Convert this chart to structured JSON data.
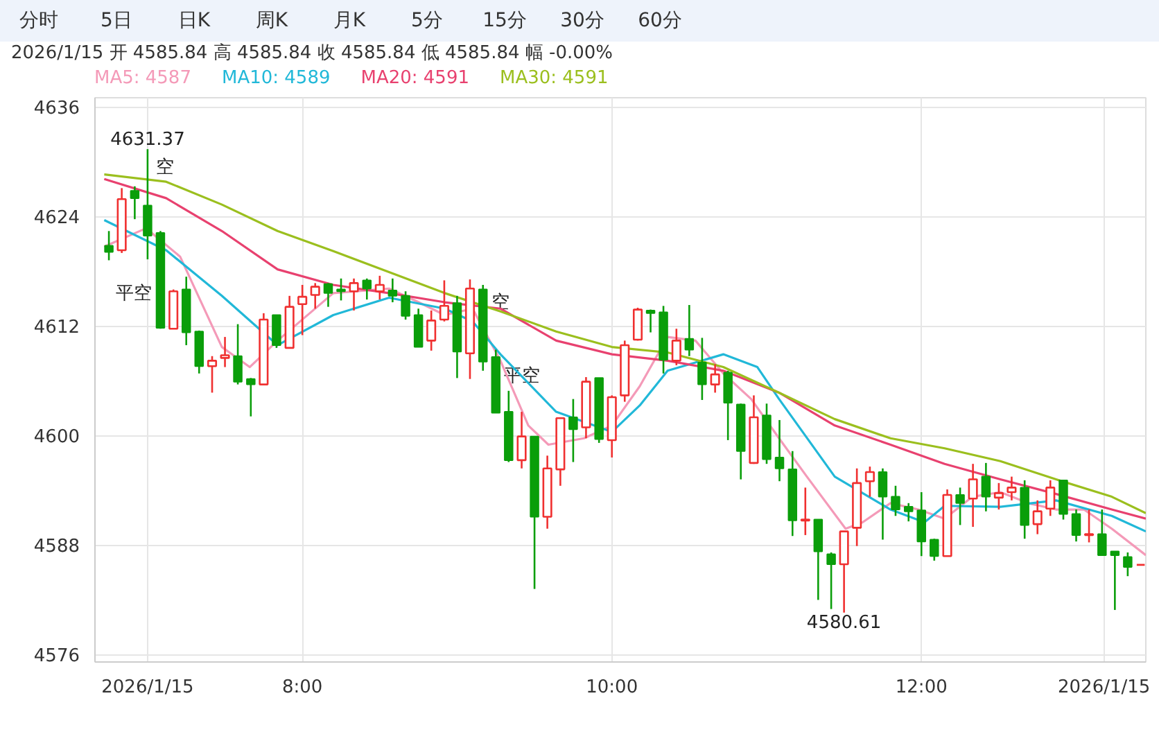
{
  "chart_data": {
    "type": "candlestick",
    "annotations": [
      "分时",
      "5日",
      "日K",
      "周K",
      "月K",
      "5分",
      "15分",
      "30分",
      "60分",
      "2026/1/15  开 4585.84  高 4585.84  收 4585.84  低 4585.84  幅 -0.00%",
      "4580.61",
      {
        "text": "4631.37",
        "x": 7.0,
        "y": 4631.37
      },
      {
        "text": "空",
        "x": 7.0,
        "y": 4629.3
      },
      {
        "text": "平空",
        "x": 7.083,
        "y": 4615.5
      },
      {
        "text": "空",
        "x": 9.167,
        "y": 4614.5
      },
      {
        "text": "平空",
        "x": 9.25,
        "y": 4606.5
      }
    ],
    "x": [
      6.75,
      6.833,
      6.917,
      7.0,
      7.083,
      7.167,
      7.25,
      7.333,
      7.417,
      7.5,
      7.583,
      7.667,
      7.75,
      7.833,
      7.917,
      8.0,
      8.083,
      8.167,
      8.25,
      8.333,
      8.417,
      8.5,
      8.583,
      8.667,
      8.75,
      8.833,
      8.917,
      9.0,
      9.083,
      9.167,
      9.25,
      9.333,
      9.417,
      9.5,
      9.583,
      9.667,
      9.75,
      9.833,
      9.917,
      10.0,
      10.083,
      10.167,
      10.25,
      10.333,
      10.417,
      10.5,
      10.583,
      10.667,
      10.75,
      10.833,
      10.917,
      11.0,
      11.083,
      11.167,
      11.25,
      11.333,
      11.417,
      11.5,
      11.583,
      11.667,
      11.75,
      11.833,
      11.917,
      12.0,
      12.083,
      12.167,
      12.25,
      12.333,
      12.417,
      12.5,
      12.583,
      12.667,
      12.75,
      12.833,
      12.917,
      13.0,
      13.083,
      13.167,
      13.25,
      13.333,
      13.417
    ],
    "ohlc": [
      [
        4620.8,
        4622.4,
        4619.2,
        4620.1
      ],
      [
        4620.3,
        4627.1,
        4620.0,
        4625.9
      ],
      [
        4626.8,
        4627.3,
        4623.7,
        4626.0
      ],
      [
        4625.2,
        4631.37,
        4619.3,
        4621.9
      ],
      [
        4622.2,
        4622.4,
        4611.7,
        4611.8
      ],
      [
        4611.7,
        4616.0,
        4611.7,
        4615.8
      ],
      [
        4616.0,
        4617.4,
        4609.9,
        4611.3
      ],
      [
        4611.4,
        4611.5,
        4606.8,
        4607.6
      ],
      [
        4607.6,
        4608.7,
        4604.7,
        4608.2
      ],
      [
        4608.5,
        4610.8,
        4607.5,
        4608.8
      ],
      [
        4608.7,
        4612.2,
        4605.6,
        4605.9
      ],
      [
        4606.2,
        4606.3,
        4602.1,
        4605.6
      ],
      [
        4605.6,
        4613.4,
        4605.6,
        4612.7
      ],
      [
        4613.2,
        4613.2,
        4609.6,
        4609.9
      ],
      [
        4609.6,
        4615.3,
        4609.6,
        4614.1
      ],
      [
        4614.4,
        4616.5,
        4611.0,
        4615.2
      ],
      [
        4615.4,
        4616.7,
        4613.9,
        4616.3
      ],
      [
        4616.6,
        4616.7,
        4614.1,
        4615.6
      ],
      [
        4616.0,
        4617.2,
        4614.8,
        4615.8
      ],
      [
        4615.8,
        4617.2,
        4613.7,
        4616.7
      ],
      [
        4617.0,
        4617.2,
        4614.9,
        4616.1
      ],
      [
        4615.8,
        4617.5,
        4614.9,
        4616.5
      ],
      [
        4615.9,
        4617.2,
        4614.6,
        4615.3
      ],
      [
        4615.3,
        4615.8,
        4612.7,
        4613.1
      ],
      [
        4613.2,
        4613.9,
        4609.7,
        4609.7
      ],
      [
        4610.4,
        4613.7,
        4609.3,
        4612.6
      ],
      [
        4612.7,
        4617.0,
        4612.5,
        4614.2
      ],
      [
        4614.5,
        4615.3,
        4606.3,
        4609.2
      ],
      [
        4609.0,
        4617.1,
        4606.2,
        4616.1
      ],
      [
        4616.0,
        4616.5,
        4607.1,
        4608.1
      ],
      [
        4608.6,
        4609.4,
        4602.5,
        4602.5
      ],
      [
        4602.6,
        4604.9,
        4597.1,
        4597.3
      ],
      [
        4597.3,
        4602.6,
        4596.4,
        4599.9
      ],
      [
        4599.9,
        4599.9,
        4583.2,
        4591.1
      ],
      [
        4591.1,
        4597.8,
        4589.8,
        4596.4
      ],
      [
        4596.3,
        4601.9,
        4594.5,
        4601.9
      ],
      [
        4602.0,
        4604.0,
        4597.1,
        4600.7
      ],
      [
        4600.9,
        4606.4,
        4599.7,
        4605.9
      ],
      [
        4606.3,
        4606.3,
        4599.2,
        4599.6
      ],
      [
        4599.5,
        4604.4,
        4597.6,
        4604.2
      ],
      [
        4604.4,
        4610.4,
        4603.7,
        4609.9
      ],
      [
        4610.5,
        4614.0,
        4610.4,
        4613.8
      ],
      [
        4613.7,
        4613.8,
        4611.3,
        4613.4
      ],
      [
        4613.5,
        4614.2,
        4606.8,
        4608.3
      ],
      [
        4608.2,
        4611.7,
        4607.7,
        4610.4
      ],
      [
        4610.6,
        4614.3,
        4608.7,
        4609.4
      ],
      [
        4608.0,
        4610.7,
        4603.9,
        4605.6
      ],
      [
        4605.6,
        4607.8,
        4604.7,
        4606.7
      ],
      [
        4606.9,
        4607.1,
        4599.5,
        4603.6
      ],
      [
        4603.4,
        4603.5,
        4595.2,
        4598.3
      ],
      [
        4597.0,
        4604.4,
        4596.9,
        4602.0
      ],
      [
        4602.2,
        4603.5,
        4596.9,
        4597.4
      ],
      [
        4597.6,
        4601.7,
        4595.0,
        4596.4
      ],
      [
        4596.3,
        4598.3,
        4589.0,
        4590.7
      ],
      [
        4590.7,
        4594.3,
        4589.1,
        4590.8
      ],
      [
        4590.8,
        4590.8,
        4582.0,
        4587.3
      ],
      [
        4587.0,
        4587.2,
        4581.0,
        4585.9
      ],
      [
        4585.9,
        4589.5,
        4580.61,
        4589.5
      ],
      [
        4589.9,
        4596.4,
        4587.9,
        4594.8
      ],
      [
        4595.0,
        4596.6,
        4593.3,
        4596.0
      ],
      [
        4596.0,
        4596.4,
        4588.6,
        4593.3
      ],
      [
        4593.3,
        4594.5,
        4591.2,
        4591.9
      ],
      [
        4592.2,
        4592.6,
        4590.6,
        4591.7
      ],
      [
        4591.8,
        4593.8,
        4586.8,
        4588.4
      ],
      [
        4588.6,
        4588.7,
        4586.3,
        4586.8
      ],
      [
        4586.8,
        4594.1,
        4586.8,
        4593.5
      ],
      [
        4593.5,
        4594.3,
        4590.2,
        4592.6
      ],
      [
        4593.1,
        4596.9,
        4590.0,
        4595.2
      ],
      [
        4595.5,
        4597.0,
        4591.7,
        4593.3
      ],
      [
        4593.2,
        4594.8,
        4591.9,
        4593.7
      ],
      [
        4593.8,
        4595.5,
        4592.9,
        4594.3
      ],
      [
        4594.3,
        4595.1,
        4588.7,
        4590.2
      ],
      [
        4590.3,
        4592.9,
        4589.2,
        4591.7
      ],
      [
        4592.0,
        4595.1,
        4591.2,
        4594.3
      ],
      [
        4595.1,
        4595.1,
        4590.8,
        4591.4
      ],
      [
        4591.4,
        4591.9,
        4588.4,
        4589.1
      ],
      [
        4589.1,
        4591.9,
        4588.3,
        4589.2
      ],
      [
        4589.2,
        4591.9,
        4586.9,
        4586.9
      ],
      [
        4587.3,
        4587.3,
        4580.9,
        4586.9
      ],
      [
        4586.7,
        4587.2,
        4584.6,
        4585.6
      ],
      [
        4585.84,
        4585.84,
        4585.84,
        4585.84
      ]
    ],
    "series": [
      {
        "name": "MA5: 4587",
        "type": "line",
        "color": "#f49ab8",
        "x": [
          6.72,
          6.99,
          7.21,
          7.48,
          7.66,
          7.84,
          8.2,
          8.56,
          8.74,
          8.92,
          9.1,
          9.28,
          9.46,
          9.59,
          9.82,
          10.0,
          10.18,
          10.36,
          10.54,
          10.72,
          10.9,
          11.08,
          11.26,
          11.51,
          11.62,
          11.8,
          11.98,
          12.15,
          12.33,
          12.51,
          12.69,
          12.87,
          13.05,
          13.23,
          13.45
        ],
        "values": [
          4620.7,
          4622.7,
          4619.6,
          4609.7,
          4607.5,
          4610.4,
          4615.6,
          4616.1,
          4614.7,
          4613.2,
          4613.9,
          4608.2,
          4601.1,
          4599.0,
          4599.7,
          4601.1,
          4605.4,
          4610.8,
          4610.4,
          4606.8,
          4604.0,
          4599.7,
          4595.5,
          4589.8,
          4590.5,
          4592.6,
          4591.9,
          4590.9,
          4593.3,
          4593.8,
          4592.6,
          4591.9,
          4591.9,
          4589.8,
          4586.9
        ]
      },
      {
        "name": "MA10: 4589",
        "type": "line",
        "color": "#21b8d8",
        "x": [
          6.72,
          7.12,
          7.48,
          7.84,
          8.2,
          8.56,
          8.92,
          9.1,
          9.28,
          9.64,
          10.0,
          10.18,
          10.36,
          10.72,
          10.94,
          11.08,
          11.44,
          11.8,
          12.02,
          12.15,
          12.51,
          12.87,
          13.23,
          13.45
        ],
        "values": [
          4623.6,
          4620.3,
          4615.3,
          4609.9,
          4613.2,
          4615.1,
          4613.9,
          4612.5,
          4608.9,
          4602.6,
          4600.4,
          4603.3,
          4607.1,
          4608.9,
          4607.5,
          4604.0,
          4595.5,
          4591.9,
          4590.5,
          4592.3,
          4592.2,
          4592.9,
          4591.2,
          4589.5
        ]
      },
      {
        "name": "MA20: 4591",
        "type": "line",
        "color": "#e8416f",
        "x": [
          6.72,
          7.12,
          7.48,
          7.84,
          8.2,
          8.56,
          8.92,
          9.28,
          9.64,
          10.0,
          10.36,
          10.72,
          11.08,
          11.44,
          11.8,
          12.15,
          12.51,
          12.87,
          13.23,
          13.45
        ],
        "values": [
          4628.1,
          4626.0,
          4622.4,
          4618.2,
          4616.5,
          4615.6,
          4614.6,
          4613.9,
          4610.4,
          4608.9,
          4608.2,
          4607.1,
          4604.7,
          4601.1,
          4599.0,
          4596.9,
          4595.2,
          4593.6,
          4591.9,
          4590.9
        ]
      },
      {
        "name": "MA30: 4591",
        "type": "line",
        "color": "#9bbf1e",
        "x": [
          6.72,
          7.12,
          7.48,
          7.84,
          8.2,
          8.56,
          8.92,
          9.28,
          9.64,
          10.0,
          10.36,
          10.72,
          11.08,
          11.44,
          11.8,
          12.15,
          12.51,
          12.87,
          13.23,
          13.45
        ],
        "values": [
          4628.6,
          4627.8,
          4625.3,
          4622.4,
          4620.2,
          4617.9,
          4615.6,
          4613.6,
          4611.4,
          4609.7,
          4609.1,
          4607.5,
          4604.7,
          4601.8,
          4599.7,
          4598.6,
          4597.2,
          4595.2,
          4593.3,
          4591.5
        ]
      }
    ],
    "xlim": [
      6.66,
      13.45
    ],
    "ylim": [
      4575.2,
      4637.0
    ],
    "xticks": [
      {
        "value": 7.0,
        "label": "2026/1/15"
      },
      {
        "value": 8.0,
        "label": "8:00"
      },
      {
        "value": 10.0,
        "label": "10:00"
      },
      {
        "value": 12.0,
        "label": "12:00"
      },
      {
        "value": 13.18,
        "label": "2026/1/15"
      }
    ],
    "yticks": [
      4576,
      4588,
      4600,
      4612,
      4624,
      4636
    ],
    "grid": true,
    "legend": "top"
  }
}
